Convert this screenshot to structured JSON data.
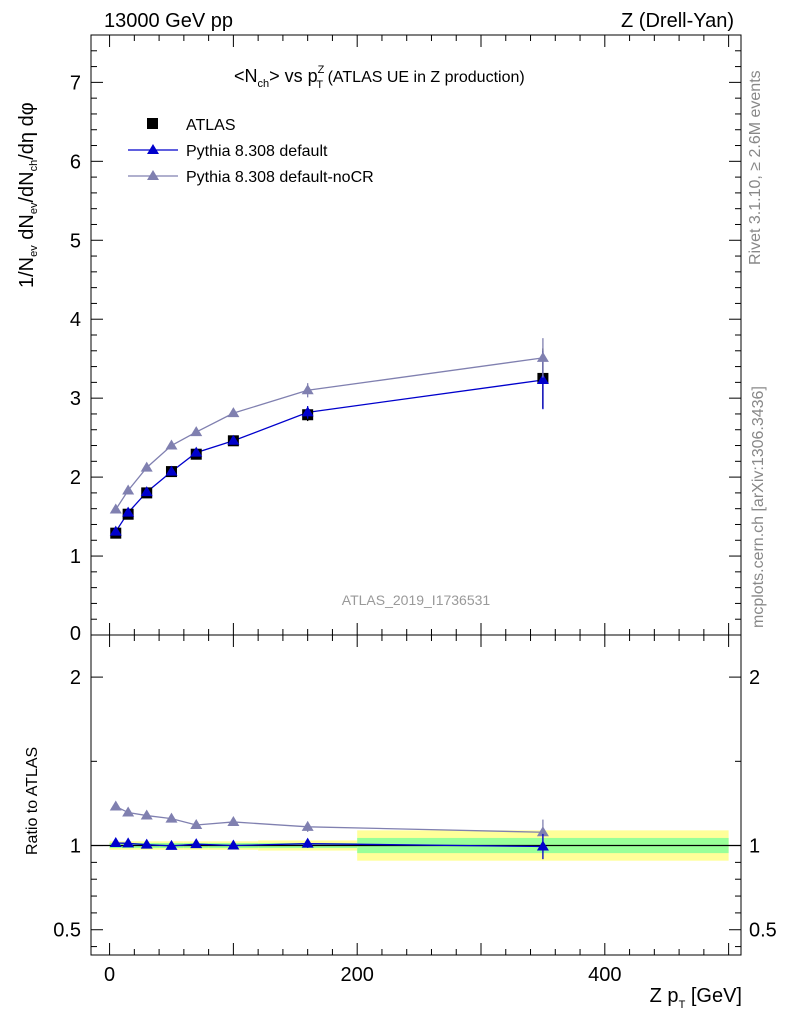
{
  "header": {
    "left": "13000 GeV pp",
    "right": "Z (Drell-Yan)"
  },
  "side_text": {
    "rivet": "Rivet 3.1.10, ≥ 2.6M events",
    "mcplots": "mcplots.cern.ch [arXiv:1306.3436]"
  },
  "watermark": "ATLAS_2019_I1736531",
  "colors": {
    "atlas": "#000000",
    "default": "#0000cc",
    "nocr": "#8080b0",
    "band_outer": "#ffff99",
    "band_inner": "#99ff99"
  },
  "chart_data": [
    {
      "type": "scatter",
      "panel": "main",
      "title_main": "<N",
      "title_sub": "ch",
      "title_mid": "> vs p",
      "title_sup": "Z",
      "title_sub2": "T",
      "title_tail": " (ATLAS UE in Z production)",
      "ylabel": "1/N_ev dN_ev/dN_ch/dη dφ",
      "ylim": [
        0,
        7.6
      ],
      "xlim": [
        -15,
        510
      ],
      "yticks": [
        "1",
        "2",
        "3",
        "4",
        "5",
        "6",
        "7"
      ],
      "ytick_values": [
        1,
        2,
        3,
        4,
        5,
        6,
        7
      ],
      "extra_ytick_label": "0",
      "legend_position": "top-left",
      "series": [
        {
          "name": "ATLAS",
          "marker": "square",
          "x": [
            5,
            15,
            30,
            50,
            70,
            100,
            160,
            350
          ],
          "y": [
            1.29,
            1.53,
            1.8,
            2.07,
            2.29,
            2.46,
            2.79,
            3.25
          ],
          "yerr": [
            0.03,
            0.03,
            0.04,
            0.04,
            0.05,
            0.05,
            0.08,
            0.38
          ]
        },
        {
          "name": "Pythia 8.308 default",
          "marker": "triangle",
          "x": [
            5,
            15,
            30,
            50,
            70,
            100,
            160,
            350
          ],
          "y": [
            1.31,
            1.55,
            1.81,
            2.07,
            2.31,
            2.46,
            2.82,
            3.23
          ],
          "yerr": [
            0.01,
            0.01,
            0.01,
            0.02,
            0.03,
            0.03,
            0.08,
            0.37
          ]
        },
        {
          "name": "Pythia 8.308 default-noCR",
          "marker": "triangle",
          "x": [
            5,
            15,
            30,
            50,
            70,
            100,
            160,
            350
          ],
          "y": [
            1.59,
            1.83,
            2.12,
            2.4,
            2.57,
            2.81,
            3.1,
            3.51
          ],
          "yerr": [
            0.01,
            0.01,
            0.01,
            0.02,
            0.03,
            0.03,
            0.09,
            0.25
          ]
        }
      ]
    },
    {
      "type": "line",
      "panel": "ratio",
      "xlabel_main": "Z p",
      "xlabel_sub": "T",
      "xlabel_tail": " [GeV]",
      "ylabel": "Ratio to ATLAS",
      "ylim": [
        0.35,
        2.25
      ],
      "xlim": [
        -15,
        510
      ],
      "yticks": [
        "0.5",
        "1",
        "2"
      ],
      "ytick_values": [
        0.5,
        1,
        2
      ],
      "xticks": [
        "0",
        "200",
        "400"
      ],
      "xtick_values": [
        0,
        200,
        400
      ],
      "bands": [
        {
          "x0": 0,
          "x1": 10,
          "outer": [
            0.975,
            1.025
          ],
          "inner": [
            0.985,
            1.015
          ]
        },
        {
          "x0": 10,
          "x1": 20,
          "outer": [
            0.975,
            1.025
          ],
          "inner": [
            0.985,
            1.015
          ]
        },
        {
          "x0": 20,
          "x1": 40,
          "outer": [
            0.975,
            1.025
          ],
          "inner": [
            0.985,
            1.015
          ]
        },
        {
          "x0": 40,
          "x1": 60,
          "outer": [
            0.975,
            1.025
          ],
          "inner": [
            0.985,
            1.015
          ]
        },
        {
          "x0": 60,
          "x1": 80,
          "outer": [
            0.975,
            1.025
          ],
          "inner": [
            0.985,
            1.015
          ]
        },
        {
          "x0": 80,
          "x1": 120,
          "outer": [
            0.975,
            1.025
          ],
          "inner": [
            0.985,
            1.015
          ]
        },
        {
          "x0": 120,
          "x1": 200,
          "outer": [
            0.97,
            1.03
          ],
          "inner": [
            0.985,
            1.015
          ]
        },
        {
          "x0": 200,
          "x1": 500,
          "outer": [
            0.91,
            1.09
          ],
          "inner": [
            0.955,
            1.045
          ]
        }
      ],
      "series": [
        {
          "name": "Pythia 8.308 default",
          "x": [
            5,
            15,
            30,
            50,
            70,
            100,
            160,
            350
          ],
          "y": [
            1.015,
            1.013,
            1.005,
            0.998,
            1.008,
            1.0,
            1.011,
            0.994
          ],
          "yerr": [
            0.008,
            0.008,
            0.008,
            0.008,
            0.01,
            0.01,
            0.025,
            0.075
          ]
        },
        {
          "name": "Pythia 8.308 default-noCR",
          "x": [
            5,
            15,
            30,
            50,
            70,
            100,
            160,
            350
          ],
          "y": [
            1.232,
            1.196,
            1.178,
            1.16,
            1.122,
            1.14,
            1.111,
            1.079
          ],
          "yerr": [
            0.008,
            0.008,
            0.008,
            0.01,
            0.01,
            0.012,
            0.03,
            0.075
          ]
        }
      ]
    }
  ]
}
